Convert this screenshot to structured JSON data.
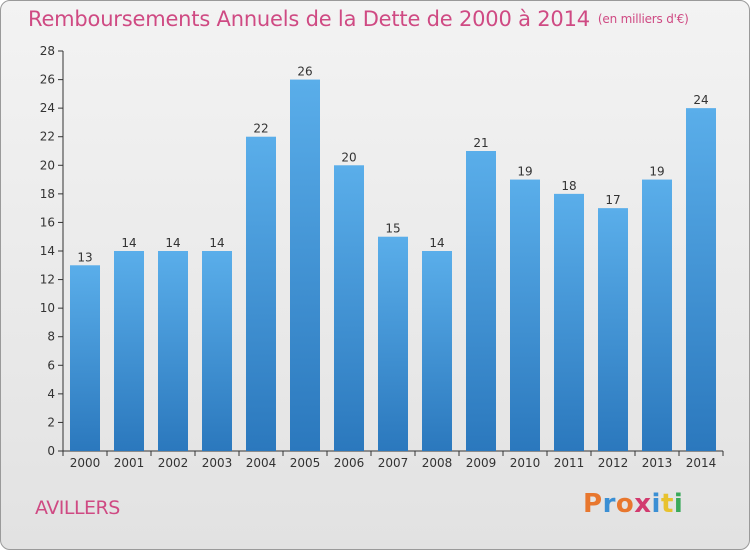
{
  "header": {
    "title": "Remboursements Annuels de la Dette de 2000 à 2014",
    "unit": "(en milliers d'€)"
  },
  "footer": {
    "commune": "AVILLERS",
    "logo_text": "Proxiti",
    "logo_colors": [
      "#e8772e",
      "#3a8fd4",
      "#e8772e",
      "#d23a6e",
      "#3a8fd4",
      "#e8c22e",
      "#3aaa5a"
    ]
  },
  "chart_data": {
    "type": "bar",
    "title": "Remboursements Annuels de la Dette de 2000 à 2014",
    "subtitle": "(en milliers d'€)",
    "categories": [
      "2000",
      "2001",
      "2002",
      "2003",
      "2004",
      "2005",
      "2006",
      "2007",
      "2008",
      "2009",
      "2010",
      "2011",
      "2012",
      "2013",
      "2014"
    ],
    "values": [
      13,
      14,
      14,
      14,
      22,
      26,
      20,
      15,
      14,
      21,
      19,
      18,
      17,
      19,
      24
    ],
    "value_labels": [
      "13",
      "14",
      "14",
      "14",
      "22",
      "26",
      "20",
      "15",
      "14",
      "21",
      "19",
      "18",
      "17",
      "19",
      "24"
    ],
    "yticks": [
      "0",
      "2",
      "4",
      "6",
      "8",
      "10",
      "12",
      "14",
      "16",
      "18",
      "20",
      "22",
      "24",
      "26",
      "28"
    ],
    "ylim": [
      0,
      28
    ],
    "grid": false,
    "bar_color_top": "#5aaeea",
    "bar_color_bottom": "#2b78bd"
  }
}
